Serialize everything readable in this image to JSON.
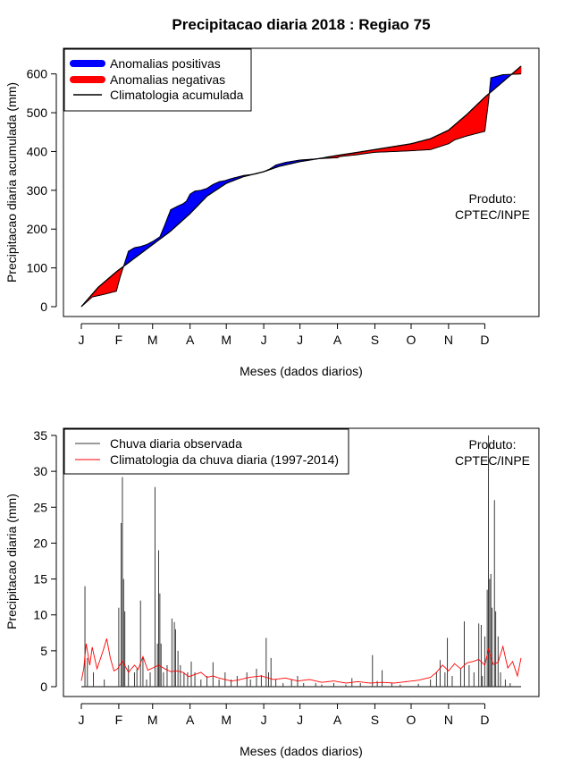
{
  "title": "Precipitacao diaria 2018 : Regiao 75",
  "colors": {
    "positive": "#0000ff",
    "negative": "#ff0000",
    "observed": "#3a3a3a",
    "climatology": "#ff0000",
    "axis": "#000000"
  },
  "chart_data": [
    {
      "type": "area",
      "name": "accumulated",
      "xlabel": "Meses (dados diarios)",
      "ylabel": "Precipitacao diaria acumulada (mm)",
      "xlim": [
        1,
        365
      ],
      "ylim": [
        0,
        620
      ],
      "yticks": [
        0,
        100,
        200,
        300,
        400,
        500,
        600
      ],
      "month_labels": [
        "J",
        "F",
        "M",
        "A",
        "M",
        "J",
        "J",
        "A",
        "S",
        "O",
        "N",
        "D"
      ],
      "month_days": [
        1,
        32,
        60,
        91,
        121,
        152,
        182,
        213,
        244,
        274,
        305,
        335
      ],
      "legend": [
        "Anomalias positivas",
        "Anomalias negativas",
        "Climatologia acumulada"
      ],
      "annotation": [
        "Produto:",
        "CPTEC/INPE"
      ],
      "climatology": {
        "days": [
          1,
          15,
          30,
          45,
          60,
          75,
          91,
          105,
          121,
          135,
          152,
          165,
          182,
          200,
          213,
          230,
          244,
          260,
          274,
          290,
          305,
          320,
          335,
          350,
          365
        ],
        "values": [
          0,
          50,
          90,
          125,
          160,
          195,
          240,
          285,
          318,
          335,
          348,
          362,
          374,
          383,
          390,
          398,
          405,
          413,
          420,
          433,
          455,
          495,
          540,
          580,
          620
        ]
      },
      "observed": {
        "days": [
          1,
          10,
          20,
          30,
          33,
          40,
          45,
          50,
          55,
          60,
          66,
          70,
          75,
          80,
          85,
          88,
          91,
          95,
          100,
          105,
          110,
          115,
          120,
          125,
          130,
          135,
          140,
          145,
          152,
          157,
          162,
          170,
          182,
          200,
          213,
          215,
          230,
          244,
          260,
          274,
          290,
          305,
          310,
          320,
          330,
          335,
          338,
          340,
          350,
          365
        ],
        "values": [
          0,
          25,
          32,
          40,
          75,
          143,
          152,
          155,
          160,
          168,
          180,
          210,
          250,
          258,
          265,
          272,
          290,
          298,
          300,
          305,
          315,
          322,
          325,
          330,
          334,
          338,
          340,
          342,
          348,
          355,
          365,
          372,
          378,
          382,
          384,
          387,
          392,
          398,
          400,
          402,
          405,
          420,
          430,
          440,
          448,
          452,
          528,
          590,
          598,
          600
        ]
      }
    },
    {
      "type": "bar+line",
      "name": "daily",
      "xlabel": "Meses (dados diarios)",
      "ylabel": "Precipitacao diaria (mm)",
      "xlim": [
        1,
        365
      ],
      "ylim": [
        0,
        35
      ],
      "yticks": [
        0,
        5,
        10,
        15,
        20,
        25,
        30,
        35
      ],
      "month_labels": [
        "J",
        "F",
        "M",
        "A",
        "M",
        "J",
        "J",
        "A",
        "S",
        "O",
        "N",
        "D"
      ],
      "month_days": [
        1,
        32,
        60,
        91,
        121,
        152,
        182,
        213,
        244,
        274,
        305,
        335
      ],
      "legend": [
        "Chuva diaria observada",
        "Climatologia da chuva diaria (1997-2014)"
      ],
      "annotation": [
        "Produto:",
        "CPTEC/INPE"
      ],
      "observed_bars": [
        [
          4,
          14
        ],
        [
          6,
          4
        ],
        [
          11,
          2
        ],
        [
          20,
          1
        ],
        [
          32,
          11
        ],
        [
          34,
          22.8
        ],
        [
          35,
          29.2
        ],
        [
          36,
          15
        ],
        [
          37,
          10.5
        ],
        [
          40,
          3
        ],
        [
          45,
          2
        ],
        [
          47,
          2.5
        ],
        [
          50,
          12
        ],
        [
          52,
          4
        ],
        [
          55,
          1
        ],
        [
          58,
          2
        ],
        [
          62,
          27.8
        ],
        [
          64,
          6
        ],
        [
          65,
          19
        ],
        [
          66,
          13
        ],
        [
          67,
          6
        ],
        [
          69,
          2
        ],
        [
          72,
          3
        ],
        [
          76,
          9.5
        ],
        [
          78,
          9
        ],
        [
          79,
          8
        ],
        [
          81,
          5
        ],
        [
          83,
          3
        ],
        [
          86,
          2
        ],
        [
          89,
          2
        ],
        [
          92,
          3.5
        ],
        [
          95,
          2
        ],
        [
          100,
          1
        ],
        [
          105,
          1.5
        ],
        [
          110,
          3.4
        ],
        [
          115,
          1
        ],
        [
          120,
          2
        ],
        [
          125,
          1
        ],
        [
          130,
          1.5
        ],
        [
          138,
          2
        ],
        [
          141,
          1
        ],
        [
          146,
          2.5
        ],
        [
          150,
          1.6
        ],
        [
          154,
          6.8
        ],
        [
          156,
          2
        ],
        [
          158,
          4
        ],
        [
          162,
          1
        ],
        [
          168,
          0.5
        ],
        [
          175,
          1
        ],
        [
          180,
          1.5
        ],
        [
          185,
          0.5
        ],
        [
          195,
          0.5
        ],
        [
          200,
          0.3
        ],
        [
          210,
          0.5
        ],
        [
          220,
          0.3
        ],
        [
          225,
          1.2
        ],
        [
          232,
          0.5
        ],
        [
          242,
          4.4
        ],
        [
          246,
          0.8
        ],
        [
          250,
          2.3
        ],
        [
          258,
          0.5
        ],
        [
          265,
          0.3
        ],
        [
          280,
          0.4
        ],
        [
          290,
          1
        ],
        [
          295,
          2
        ],
        [
          298,
          3.7
        ],
        [
          302,
          2
        ],
        [
          304,
          6.8
        ],
        [
          308,
          1.5
        ],
        [
          315,
          2.5
        ],
        [
          318,
          9.1
        ],
        [
          322,
          3
        ],
        [
          326,
          2
        ],
        [
          330,
          8.8
        ],
        [
          332,
          8.6
        ],
        [
          333,
          1.5
        ],
        [
          335,
          7
        ],
        [
          337,
          13.5
        ],
        [
          338,
          35
        ],
        [
          339,
          15
        ],
        [
          340,
          15.7
        ],
        [
          341,
          11
        ],
        [
          343,
          26
        ],
        [
          344,
          10.5
        ],
        [
          346,
          7
        ],
        [
          348,
          2
        ],
        [
          352,
          1
        ],
        [
          356,
          0.5
        ]
      ],
      "climatology_line": {
        "days": [
          1,
          3,
          5,
          8,
          10,
          14,
          16,
          19,
          22,
          25,
          28,
          31,
          35,
          40,
          45,
          48,
          52,
          56,
          60,
          65,
          70,
          75,
          80,
          85,
          90,
          95,
          100,
          105,
          110,
          115,
          120,
          125,
          130,
          140,
          150,
          160,
          170,
          180,
          190,
          200,
          210,
          220,
          230,
          240,
          250,
          260,
          270,
          280,
          290,
          295,
          300,
          305,
          310,
          315,
          320,
          325,
          330,
          335,
          338,
          342,
          346,
          350,
          354,
          358,
          362,
          365
        ],
        "values": [
          0.8,
          2.5,
          6,
          3,
          5.5,
          2.5,
          3.5,
          5,
          6.7,
          4,
          2.2,
          2.5,
          3.6,
          2,
          3,
          2.4,
          4.2,
          2.3,
          2.6,
          3,
          2.5,
          2.1,
          2.2,
          2,
          1.4,
          1.7,
          2,
          1.3,
          1.5,
          1.2,
          1,
          0.8,
          0.9,
          1.3,
          1.5,
          1,
          1.2,
          0.8,
          1,
          0.6,
          0.8,
          0.5,
          0.7,
          0.5,
          0.6,
          0.5,
          0.7,
          0.9,
          1.3,
          2,
          3,
          2.2,
          3.2,
          2.5,
          3.3,
          3.5,
          3.8,
          3,
          5.2,
          3.1,
          3.4,
          5.6,
          2.6,
          3.5,
          1.5,
          4
        ]
      }
    }
  ]
}
